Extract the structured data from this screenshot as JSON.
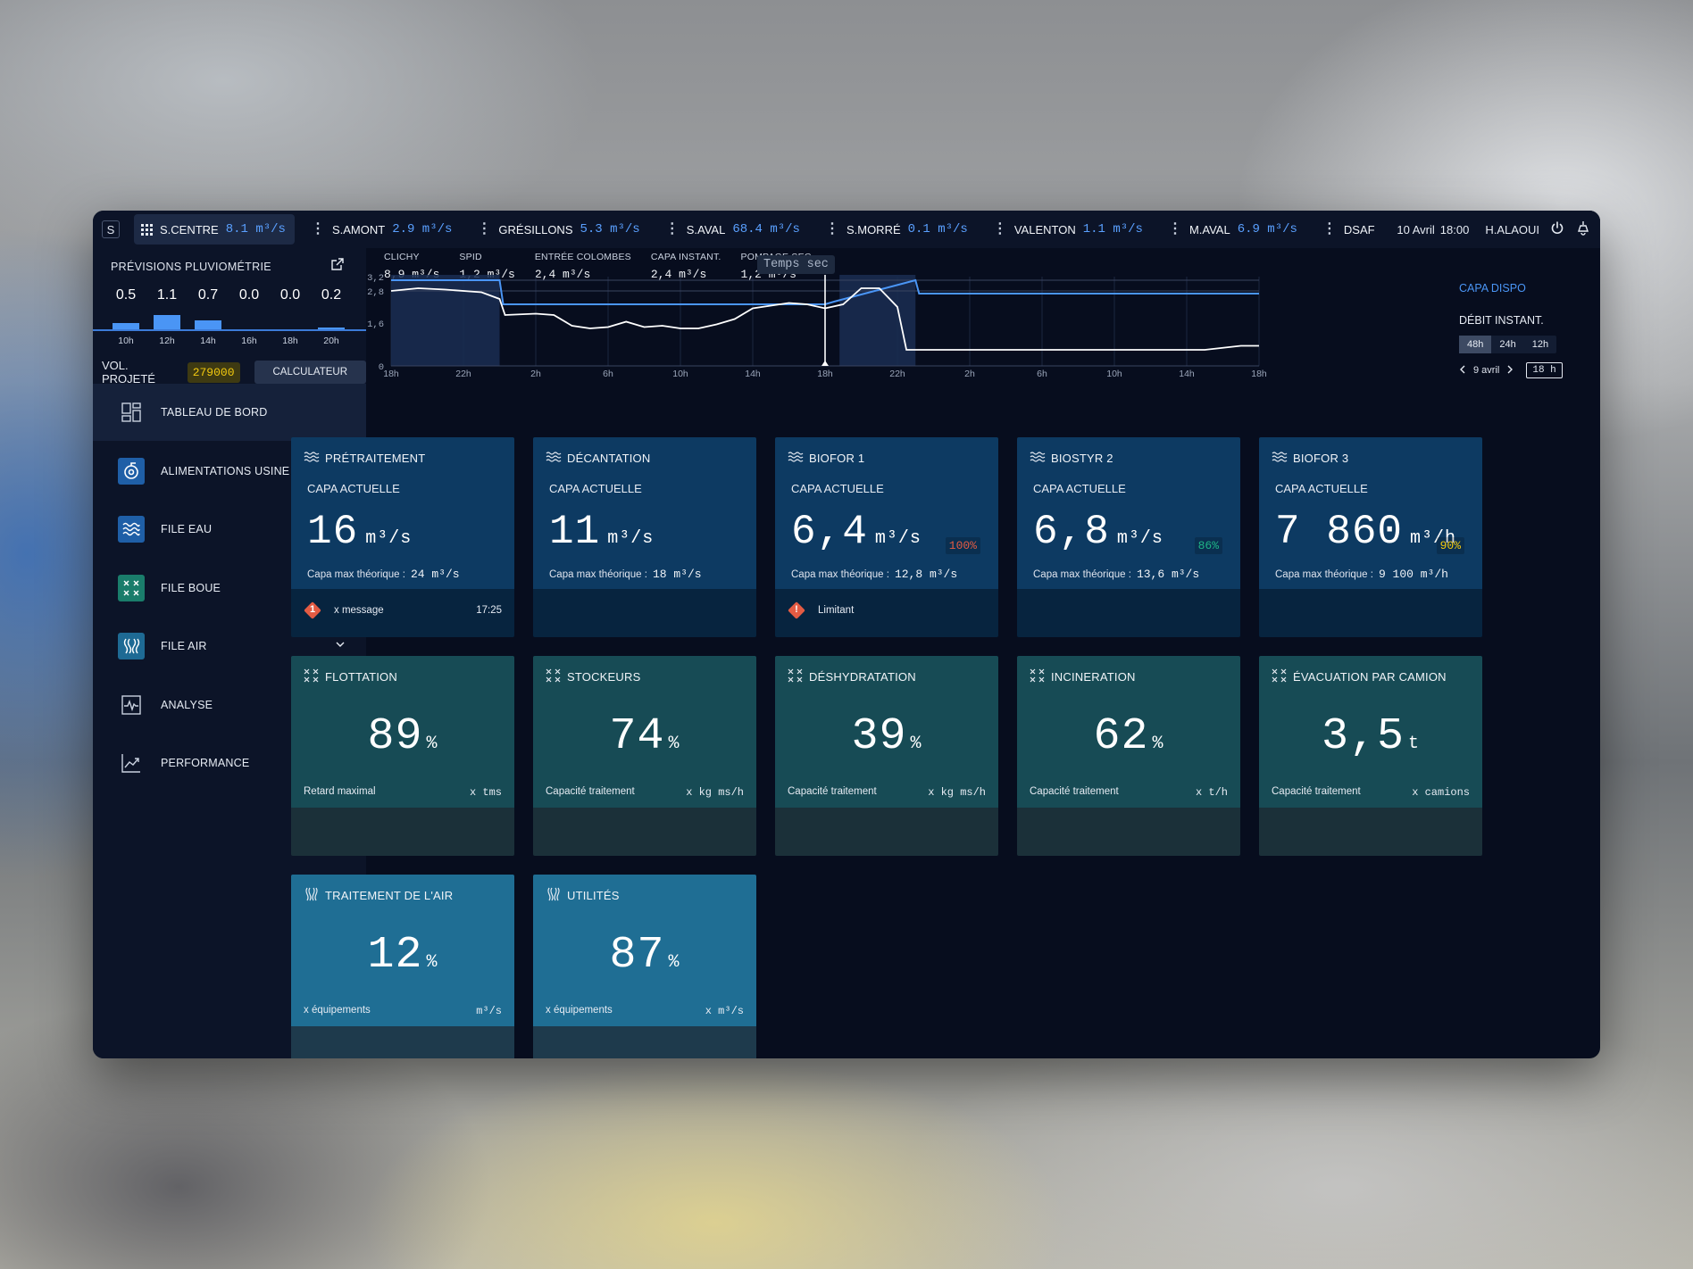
{
  "app": {
    "logo": "S"
  },
  "topbar": {
    "sites": [
      {
        "name": "S.CENTRE",
        "value": "8.1 m³/s",
        "active": true
      },
      {
        "name": "S.AMONT",
        "value": "2.9 m³/s"
      },
      {
        "name": "GRÉSILLONS",
        "value": "5.3 m³/s"
      },
      {
        "name": "S.AVAL",
        "value": "68.4 m³/s"
      },
      {
        "name": "S.MORRÉ",
        "value": "0.1 m³/s"
      },
      {
        "name": "VALENTON",
        "value": "1.1 m³/s"
      },
      {
        "name": "M.AVAL",
        "value": "6.9 m³/s"
      },
      {
        "name": "DSAF",
        "value": ""
      }
    ],
    "date": "10 Avril",
    "time": "18:00",
    "user": "H.ALAOUI",
    "icons": [
      "grid-icon",
      "more-icon",
      "power-icon",
      "lamp-icon"
    ]
  },
  "rain": {
    "title": "PRÉVISIONS PLUVIOMÉTRIE",
    "values": [
      "0.5",
      "1.1",
      "0.7",
      "0.0",
      "0.0",
      "0.2"
    ],
    "amounts": [
      0.5,
      1.1,
      0.7,
      0.0,
      0.0,
      0.2
    ],
    "ticks": [
      "10h",
      "12h",
      "14h",
      "16h",
      "18h",
      "20h"
    ]
  },
  "vol": {
    "label": "VOL. PROJETÉ",
    "value": "279000",
    "calc": "CALCULATEUR"
  },
  "nav": [
    {
      "label": "TABLEAU DE BORD",
      "icon": "dashboard-icon",
      "active": true
    },
    {
      "label": "ALIMENTATIONS USINE",
      "icon": "pump-icon"
    },
    {
      "label": "FILE EAU",
      "icon": "water-icon"
    },
    {
      "label": "FILE BOUE",
      "icon": "sludge-icon"
    },
    {
      "label": "FILE AIR",
      "icon": "air-icon"
    },
    {
      "label": "ANALYSE",
      "icon": "analysis-icon"
    },
    {
      "label": "PERFORMANCE",
      "icon": "performance-icon"
    }
  ],
  "kpis": [
    {
      "label": "CLICHY",
      "value": "8,9 m³/s"
    },
    {
      "label": "SPID",
      "value": "1,2 m³/s"
    },
    {
      "label": "ENTRÉE COLOMBES",
      "value": "2,4 m³/s"
    },
    {
      "label": "CAPA INSTANT.",
      "value": "2,4 m³/s"
    },
    {
      "label": "POMPAGE SEG",
      "value": "1,2 m³/s"
    }
  ],
  "temps_sec": "Temps sec",
  "chart_data": {
    "type": "line",
    "xlabel": "",
    "ylabel": "",
    "x_ticks": [
      "18h",
      "22h",
      "2h",
      "6h",
      "10h",
      "14h",
      "18h",
      "22h",
      "2h",
      "6h",
      "10h",
      "14h",
      "18h"
    ],
    "y_ticks": [
      "0",
      "1,6",
      "2,8",
      "3,2"
    ],
    "ylim": [
      0,
      3.2
    ],
    "x_hours": [
      0,
      48
    ],
    "series": [
      {
        "name": "CAPA DISPO",
        "color": "#4a95f5",
        "x": [
          0,
          6,
          6.2,
          24,
          24.5,
          29,
          29.2,
          48
        ],
        "y": [
          3.2,
          3.2,
          2.3,
          2.3,
          2.4,
          3.2,
          2.7,
          2.7
        ]
      },
      {
        "name": "DÉBIT INSTANT.",
        "color": "#ffffff",
        "x": [
          0,
          1.5,
          3,
          5,
          6,
          6.3,
          8,
          9,
          10,
          11,
          12,
          13,
          14,
          15,
          16,
          17,
          18,
          19,
          20,
          22,
          23,
          24,
          25,
          26,
          27,
          28,
          28.5,
          30,
          45,
          47,
          48
        ],
        "y": [
          2.8,
          2.9,
          2.85,
          2.75,
          2.5,
          1.9,
          1.95,
          1.9,
          1.5,
          1.4,
          1.45,
          1.65,
          1.45,
          1.5,
          1.4,
          1.4,
          1.55,
          1.75,
          2.15,
          2.35,
          2.3,
          2.15,
          2.3,
          2.9,
          2.9,
          2.2,
          0.6,
          0.6,
          0.6,
          0.75,
          0.75
        ]
      }
    ],
    "shaded_ranges_hours": [
      [
        0,
        6
      ],
      [
        24.8,
        29
      ]
    ],
    "now_hour": 24,
    "legend": [
      "CAPA DISPO",
      "DÉBIT INSTANT."
    ]
  },
  "chartctl": {
    "ranges": [
      "48h",
      "24h",
      "12h"
    ],
    "selected": "48h",
    "date": "9 avril",
    "hour": "18 h"
  },
  "cards_row1": [
    {
      "title": "PRÉTRAITEMENT",
      "sub": "CAPA ACTUELLE",
      "value": "16",
      "unit": "m³/s",
      "pct": "",
      "pct_color": "",
      "max_label": "Capa max théorique :",
      "max": "24 m³/s",
      "msg": "x message",
      "msg_badge": "1",
      "msg_time": "17:25"
    },
    {
      "title": "DÉCANTATION",
      "sub": "CAPA ACTUELLE",
      "value": "11",
      "unit": "m³/s",
      "pct": "",
      "pct_color": "",
      "max_label": "Capa max théorique :",
      "max": "18 m³/s",
      "msg": "",
      "msg_badge": "",
      "msg_time": ""
    },
    {
      "title": "BIOFOR 1",
      "sub": "CAPA ACTUELLE",
      "value": "6,4",
      "unit": "m³/s",
      "pct": "100%",
      "pct_color": "#e35b43",
      "max_label": "Capa max théorique :",
      "max": "12,8 m³/s",
      "msg": "Limitant",
      "msg_badge": "!",
      "msg_time": ""
    },
    {
      "title": "BIOSTYR 2",
      "sub": "CAPA ACTUELLE",
      "value": "6,8",
      "unit": "m³/s",
      "pct": "86%",
      "pct_color": "#1fb486",
      "max_label": "Capa max théorique :",
      "max": "13,6 m³/s",
      "msg": "",
      "msg_badge": "",
      "msg_time": ""
    },
    {
      "title": "BIOFOR 3",
      "sub": "CAPA ACTUELLE",
      "value": "7 860",
      "unit": "m³/h",
      "pct": "90%",
      "pct_color": "#f2c90f",
      "max_label": "Capa max théorique :",
      "max": "9 100 m³/h",
      "msg": "",
      "msg_badge": "",
      "msg_time": ""
    }
  ],
  "cards_row2": [
    {
      "title": "FLOTTATION",
      "value": "89",
      "unit": "%",
      "foot": "Retard maximal",
      "foot_r": "x tms"
    },
    {
      "title": "STOCKEURS",
      "value": "74",
      "unit": "%",
      "foot": "Capacité traitement",
      "foot_r": "x kg ms/h"
    },
    {
      "title": "DÉSHYDRATATION",
      "value": "39",
      "unit": "%",
      "foot": "Capacité traitement",
      "foot_r": "x kg ms/h"
    },
    {
      "title": "INCINERATION",
      "value": "62",
      "unit": "%",
      "foot": "Capacité traitement",
      "foot_r": "x t/h"
    },
    {
      "title": "ÉVACUATION PAR CAMION",
      "value": "3,5",
      "unit": "t",
      "foot": "Capacité traitement",
      "foot_r": "x camions"
    }
  ],
  "cards_row3": [
    {
      "title": "TRAITEMENT DE L'AIR",
      "value": "12",
      "unit": "%",
      "foot": "x équipements",
      "foot_r": "m³/s"
    },
    {
      "title": "UTILITÉS",
      "value": "87",
      "unit": "%",
      "foot": "x équipements",
      "foot_r": "x m³/s"
    }
  ],
  "colors": {
    "accent": "#4a95f5",
    "warning": "#f2c90f",
    "danger": "#e35b43",
    "ok": "#1fb486"
  }
}
